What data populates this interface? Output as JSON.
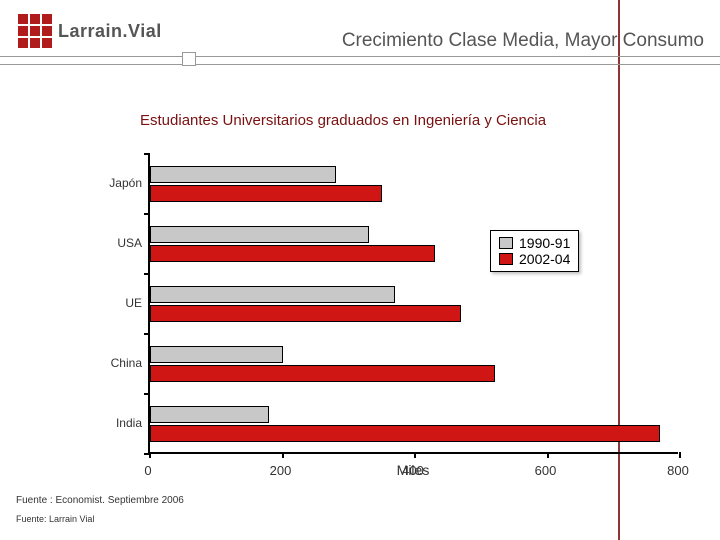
{
  "header": {
    "logo_text": "Larrain.Vial",
    "title": "Crecimiento Clase Media, Mayor Consumo"
  },
  "chart": {
    "type": "bar",
    "title": "Estudiantes Universitarios graduados en Ingeniería y Ciencia",
    "axis_title": "Miles",
    "categories": [
      "Japón",
      "USA",
      "UE",
      "China",
      "India"
    ],
    "series": [
      {
        "name": "1990-91",
        "color": "#c8c8c8",
        "values": [
          280,
          330,
          370,
          200,
          180
        ]
      },
      {
        "name": "2002-04",
        "color": "#d01515",
        "values": [
          350,
          430,
          470,
          520,
          770
        ]
      }
    ],
    "xlim": [
      0,
      800
    ],
    "xtick_step": 200,
    "xticks": [
      0,
      200,
      400,
      600,
      800
    ],
    "background_color": "#ffffff",
    "bar_border_color": "#000000",
    "axis_color": "#000000",
    "label_fontsize": 12,
    "title_fontsize": 15,
    "title_color": "#7a1010",
    "legend": {
      "position": "right",
      "border_color": "#000000",
      "bg_color": "#ffffff"
    }
  },
  "footer": {
    "source1": "Fuente : Economist. Septiembre 2006",
    "source2": "Fuente: Larrain Vial"
  }
}
